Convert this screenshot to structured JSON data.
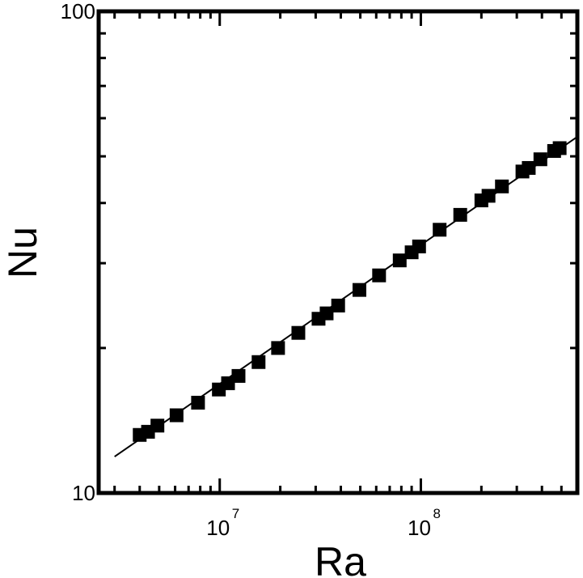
{
  "chart_data": {
    "type": "scatter",
    "title": "",
    "xlabel": "Ra",
    "ylabel": "Nu",
    "xscale": "log",
    "yscale": "log",
    "xlim": [
      2500000,
      600000000
    ],
    "ylim": [
      10,
      100
    ],
    "grid": false,
    "legend": "none",
    "x_ticks": [
      {
        "value": 10000000,
        "base": "10",
        "exp": "7"
      },
      {
        "value": 100000000,
        "base": "10",
        "exp": "8"
      }
    ],
    "y_ticks": [
      {
        "value": 10,
        "label": "10"
      },
      {
        "value": 100,
        "label": "100"
      }
    ],
    "series": [
      {
        "mode": "markers",
        "marker": "filled-square",
        "color": "#000000",
        "x": [
          4000000,
          4400000,
          4900000,
          6100000,
          7800000,
          9900000,
          11000000,
          12400000,
          15600000,
          19500000,
          24600000,
          31000000,
          34000000,
          38800000,
          49500000,
          62000000,
          78500000,
          90000000,
          98000000,
          124000000,
          157000000,
          200000000,
          217000000,
          253000000,
          320000000,
          344000000,
          393000000,
          460000000,
          490000000
        ],
        "y": [
          13.2,
          13.4,
          13.8,
          14.5,
          15.4,
          16.4,
          16.9,
          17.5,
          18.7,
          20.0,
          21.5,
          23.0,
          23.6,
          24.5,
          26.4,
          28.3,
          30.4,
          31.6,
          32.5,
          35.2,
          37.8,
          40.5,
          41.4,
          43.3,
          46.5,
          47.3,
          49.3,
          51.3,
          52.0
        ]
      },
      {
        "mode": "line",
        "name": "",
        "color": "#000000",
        "x": [
          3000000,
          600000000
        ],
        "y": [
          11.9,
          54.9
        ]
      }
    ]
  }
}
